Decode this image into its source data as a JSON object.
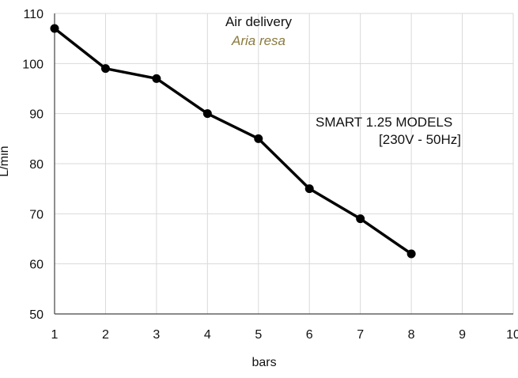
{
  "chart_data": {
    "type": "line",
    "title": "Air delivery",
    "subtitle": "Aria resa",
    "xlabel": "bars",
    "ylabel": "L/min",
    "xlim": [
      1,
      10
    ],
    "ylim": [
      50,
      110
    ],
    "xticks": [
      1,
      2,
      3,
      4,
      5,
      6,
      7,
      8,
      9,
      10
    ],
    "yticks": [
      50,
      60,
      70,
      80,
      90,
      100,
      110
    ],
    "grid": true,
    "annotation": {
      "line1": "SMART 1.25 MODELS",
      "line2": "[230V - 50Hz]"
    },
    "series": [
      {
        "x": [
          1,
          2,
          3,
          4,
          5,
          6,
          7,
          8
        ],
        "y": [
          107,
          99,
          97,
          90,
          85,
          75,
          69,
          62
        ]
      }
    ],
    "colors": {
      "line": "#000000",
      "grid": "#d9d9d9",
      "subtitle": "#8a7a3f"
    }
  }
}
